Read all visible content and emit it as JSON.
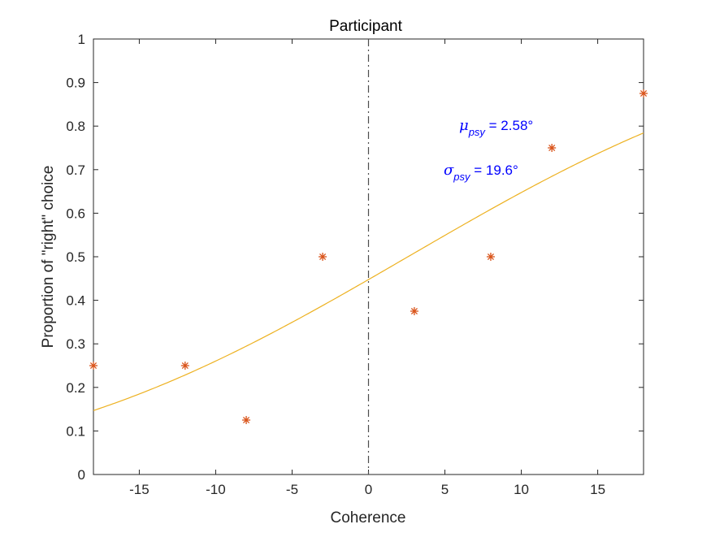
{
  "chart_data": {
    "type": "scatter",
    "title": "Participant",
    "xlabel": "Coherence",
    "ylabel": "Proportion of \"right\" choice",
    "xlim": [
      -18,
      18
    ],
    "ylim": [
      0,
      1
    ],
    "xticks": [
      -15,
      -10,
      -5,
      0,
      5,
      10,
      15
    ],
    "yticks": [
      0,
      0.1,
      0.2,
      0.3,
      0.4,
      0.5,
      0.6,
      0.7,
      0.8,
      0.9,
      1
    ],
    "xtick_labels": [
      "-15",
      "-10",
      "-5",
      "0",
      "5",
      "10",
      "15"
    ],
    "ytick_labels": [
      "0",
      "0.1",
      "0.2",
      "0.3",
      "0.4",
      "0.5",
      "0.6",
      "0.7",
      "0.8",
      "0.9",
      "1"
    ],
    "grid": false,
    "reference_line": {
      "x": 0,
      "style": "dash-dot",
      "color": "#4d4d4d"
    },
    "series": [
      {
        "kind": "markers",
        "marker": "asterisk",
        "color": "#d95319",
        "x": [
          -18,
          -12,
          -8,
          -3,
          3,
          8,
          12,
          18
        ],
        "y": [
          0.25,
          0.25,
          0.125,
          0.5,
          0.375,
          0.5,
          0.75,
          0.875
        ]
      },
      {
        "kind": "fit-curve",
        "color": "#edb120",
        "function": "cumulative-normal",
        "mu": 2.58,
        "sigma": 19.6
      }
    ],
    "annotations": [
      {
        "symbol": "μ",
        "subscript": "psy",
        "text": " =   2.58°",
        "color": "#0000ff"
      },
      {
        "symbol": "σ",
        "subscript": "psy",
        "text": " =   19.6°",
        "color": "#0000ff"
      }
    ]
  }
}
